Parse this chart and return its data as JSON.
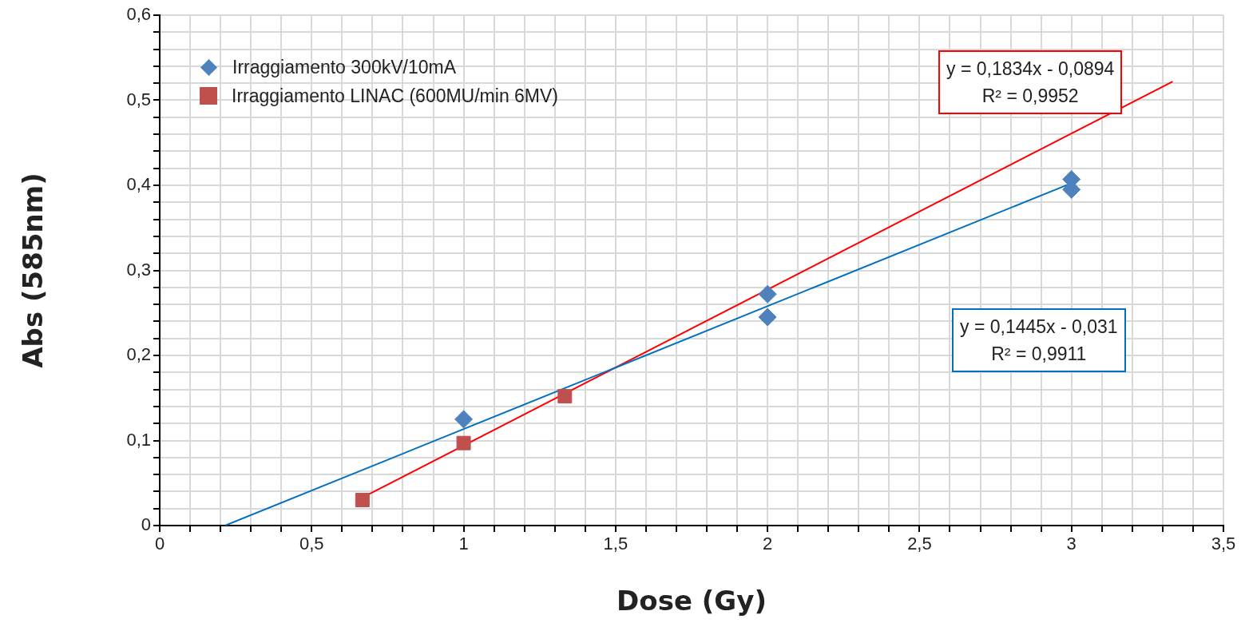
{
  "chart_data": {
    "type": "scatter",
    "xlabel": "Dose (Gy)",
    "ylabel": "Abs (585nm)",
    "xlim": [
      0,
      3.5
    ],
    "ylim": [
      0,
      0.6
    ],
    "xticks": [
      0,
      {
        "value": 0.1,
        "label": null
      },
      {
        "value": 0.2,
        "label": null
      },
      {
        "value": 0.3,
        "label": null
      },
      {
        "value": 0.4,
        "label": null
      },
      {
        "value": 0.5,
        "label": "0,5"
      },
      {
        "value": 0.6,
        "label": null
      },
      {
        "value": 0.7,
        "label": null
      },
      {
        "value": 0.8,
        "label": null
      },
      {
        "value": 0.9,
        "label": null
      },
      1,
      {
        "value": 1.1,
        "label": null
      },
      {
        "value": 1.2,
        "label": null
      },
      {
        "value": 1.3,
        "label": null
      },
      {
        "value": 1.4,
        "label": null
      },
      {
        "value": 1.5,
        "label": "1,5"
      },
      {
        "value": 1.6,
        "label": null
      },
      {
        "value": 1.7,
        "label": null
      },
      {
        "value": 1.8,
        "label": null
      },
      {
        "value": 1.9,
        "label": null
      },
      2,
      {
        "value": 2.1,
        "label": null
      },
      {
        "value": 2.2,
        "label": null
      },
      {
        "value": 2.3,
        "label": null
      },
      {
        "value": 2.4,
        "label": null
      },
      {
        "value": 2.5,
        "label": "2,5"
      },
      {
        "value": 2.6,
        "label": null
      },
      {
        "value": 2.7,
        "label": null
      },
      {
        "value": 2.8,
        "label": null
      },
      {
        "value": 2.9,
        "label": null
      },
      3,
      {
        "value": 3.1,
        "label": null
      },
      {
        "value": 3.2,
        "label": null
      },
      {
        "value": 3.3,
        "label": null
      },
      {
        "value": 3.4,
        "label": null
      },
      {
        "value": 3.5,
        "label": "3,5"
      }
    ],
    "yticks": [
      0,
      {
        "value": 0.02,
        "label": null
      },
      {
        "value": 0.04,
        "label": null
      },
      {
        "value": 0.06,
        "label": null
      },
      {
        "value": 0.08,
        "label": null
      },
      {
        "value": 0.1,
        "label": "0,1"
      },
      {
        "value": 0.12,
        "label": null
      },
      {
        "value": 0.14,
        "label": null
      },
      {
        "value": 0.16,
        "label": null
      },
      {
        "value": 0.18,
        "label": null
      },
      {
        "value": 0.2,
        "label": "0,2"
      },
      {
        "value": 0.22,
        "label": null
      },
      {
        "value": 0.24,
        "label": null
      },
      {
        "value": 0.26,
        "label": null
      },
      {
        "value": 0.28,
        "label": null
      },
      {
        "value": 0.3,
        "label": "0,3"
      },
      {
        "value": 0.32,
        "label": null
      },
      {
        "value": 0.34,
        "label": null
      },
      {
        "value": 0.36,
        "label": null
      },
      {
        "value": 0.38,
        "label": null
      },
      {
        "value": 0.4,
        "label": "0,4"
      },
      {
        "value": 0.42,
        "label": null
      },
      {
        "value": 0.44,
        "label": null
      },
      {
        "value": 0.46,
        "label": null
      },
      {
        "value": 0.48,
        "label": null
      },
      {
        "value": 0.5,
        "label": "0,5"
      },
      {
        "value": 0.52,
        "label": null
      },
      {
        "value": 0.54,
        "label": null
      },
      {
        "value": 0.56,
        "label": null
      },
      {
        "value": 0.58,
        "label": null
      },
      {
        "value": 0.6,
        "label": "0,6"
      }
    ],
    "grid": true,
    "legend": "top left",
    "series": [
      {
        "name": "Irraggiamento 300kV/10mA",
        "color": "#4f81bd",
        "marker": "diamond",
        "x": [
          1,
          2,
          2,
          3,
          3
        ],
        "values": [
          0.125,
          0.272,
          0.245,
          0.407,
          0.395
        ]
      },
      {
        "name": "Irraggiamento LINAC (600MU/min 6MV)",
        "color": "#c0504d",
        "marker": "square",
        "x": [
          0.667,
          1,
          1.333
        ],
        "values": [
          0.03,
          0.097,
          0.152
        ]
      },
      {
        "type": "line",
        "color": "#0070c0",
        "marker": "none",
        "x": [
          0.215,
          3
        ],
        "values": [
          0,
          0.4025
        ]
      },
      {
        "type": "line",
        "color": "#ff0000",
        "marker": "none",
        "x": [
          0.667,
          3.333
        ],
        "values": [
          0.033,
          0.522
        ]
      }
    ],
    "annotations": [
      "y = 0,1834x - 0,0894\nR² = 0,9952",
      "y = 0,1445x - 0,031\nR² = 0,9911"
    ]
  }
}
